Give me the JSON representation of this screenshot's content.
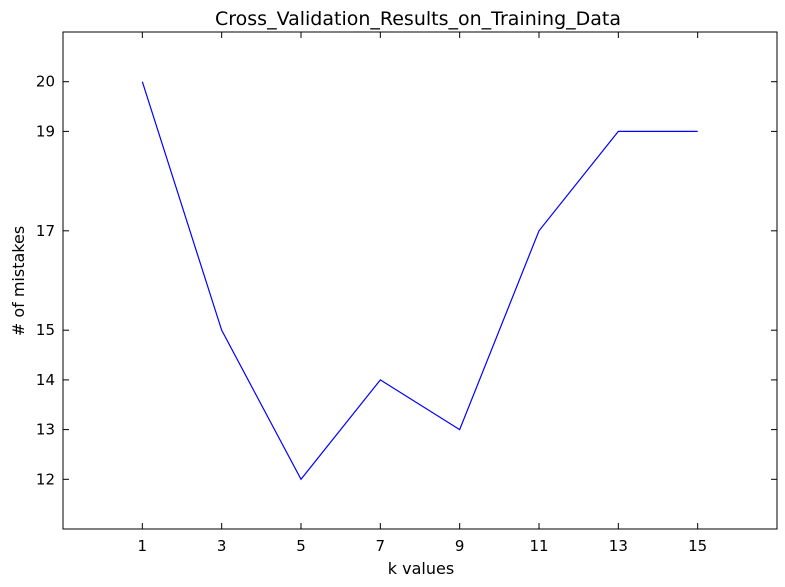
{
  "chart_data": {
    "type": "line",
    "title": "Cross_Validation_Results_on_Training_Data",
    "xlabel": "k values",
    "ylabel": "# of mistakes",
    "x": [
      1,
      3,
      5,
      7,
      9,
      11,
      13,
      15
    ],
    "series": [
      {
        "values": [
          20,
          15,
          12,
          14,
          13,
          17,
          19,
          19
        ],
        "color": "#0000ff"
      }
    ],
    "xticks": [
      1,
      3,
      5,
      7,
      9,
      11,
      13,
      15
    ],
    "yticks": [
      12,
      13,
      14,
      15,
      17,
      19,
      20
    ],
    "xlim": [
      -1,
      17
    ],
    "ylim": [
      11,
      21
    ],
    "grid": false
  }
}
